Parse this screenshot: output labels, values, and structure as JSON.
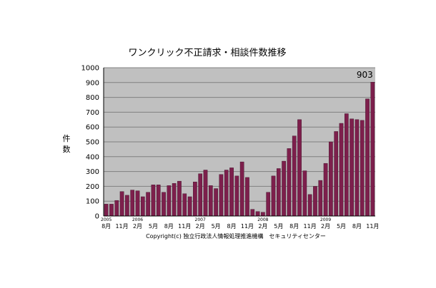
{
  "chart_data": {
    "type": "bar",
    "title": "ワンクリック不正請求・相談件数推移",
    "ylabel": "件数",
    "xlabel": "",
    "ylim": [
      0,
      1000
    ],
    "yticks": [
      0,
      100,
      200,
      300,
      400,
      500,
      600,
      700,
      800,
      900,
      1000
    ],
    "grid": true,
    "legend": "none",
    "colors": {
      "bar": "#7d1f4c",
      "plot_bg": "#c0c0c0",
      "grid": "#808080",
      "axis": "#000000"
    },
    "categories": [
      "2005-08",
      "2005-09",
      "2005-10",
      "2005-11",
      "2005-12",
      "2006-01",
      "2006-02",
      "2006-03",
      "2006-04",
      "2006-05",
      "2006-06",
      "2006-07",
      "2006-08",
      "2006-09",
      "2006-10",
      "2006-11",
      "2006-12",
      "2007-01",
      "2007-02",
      "2007-03",
      "2007-04",
      "2007-05",
      "2007-06",
      "2007-07",
      "2007-08",
      "2007-09",
      "2007-10",
      "2007-11",
      "2007-12",
      "2008-01",
      "2008-02",
      "2008-03",
      "2008-04",
      "2008-05",
      "2008-06",
      "2008-07",
      "2008-08",
      "2008-09",
      "2008-10",
      "2008-11",
      "2008-12",
      "2009-01",
      "2009-02",
      "2009-03",
      "2009-04",
      "2009-05",
      "2009-06",
      "2009-07",
      "2009-08",
      "2009-09",
      "2009-10",
      "2009-11"
    ],
    "values": [
      80,
      80,
      105,
      165,
      140,
      175,
      170,
      130,
      160,
      210,
      210,
      160,
      205,
      220,
      235,
      150,
      130,
      230,
      285,
      310,
      205,
      185,
      280,
      310,
      325,
      270,
      365,
      260,
      45,
      30,
      25,
      160,
      270,
      320,
      370,
      455,
      540,
      650,
      305,
      145,
      200,
      240,
      355,
      500,
      570,
      625,
      690,
      655,
      650,
      645,
      790,
      903
    ],
    "tick_labels": [
      {
        "index": 0,
        "month": "8月",
        "year": "2005"
      },
      {
        "index": 3,
        "month": "11月"
      },
      {
        "index": 6,
        "month": "2月",
        "year": "2006"
      },
      {
        "index": 9,
        "month": "5月"
      },
      {
        "index": 12,
        "month": "8月"
      },
      {
        "index": 15,
        "month": "11月"
      },
      {
        "index": 18,
        "month": "2月",
        "year": "2007"
      },
      {
        "index": 21,
        "month": "5月"
      },
      {
        "index": 24,
        "month": "8月"
      },
      {
        "index": 27,
        "month": "11月"
      },
      {
        "index": 30,
        "month": "2月",
        "year": "2008"
      },
      {
        "index": 33,
        "month": "5月"
      },
      {
        "index": 36,
        "month": "8月"
      },
      {
        "index": 39,
        "month": "11月"
      },
      {
        "index": 42,
        "month": "2月",
        "year": "2009"
      },
      {
        "index": 45,
        "month": "5月"
      },
      {
        "index": 48,
        "month": "8月"
      },
      {
        "index": 51,
        "month": "11月"
      }
    ],
    "annotations": [
      {
        "index": 51,
        "text": "903"
      }
    ],
    "copyright": "Copyright(c) 独立行政法人情報処理推進機構　セキュリティセンター"
  }
}
